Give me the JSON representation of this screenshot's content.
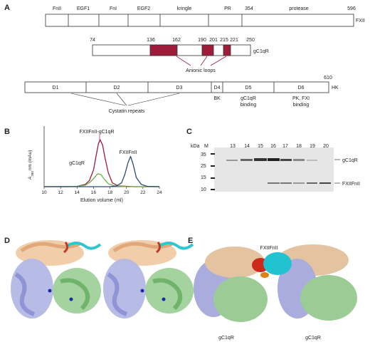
{
  "panels": {
    "a": "A",
    "b": "B",
    "c": "C",
    "d": "D",
    "e": "E"
  },
  "panel_a": {
    "fxii": {
      "name": "FXII",
      "end": "596",
      "mark_354": "354",
      "domains": [
        "FnII",
        "EGF1",
        "FnI",
        "EGF2",
        "kringle",
        "PR",
        "protease"
      ]
    },
    "gc1qr": {
      "name": "gC1qR",
      "positions": [
        "74",
        "136",
        "162",
        "190",
        "201",
        "215",
        "221",
        "250"
      ],
      "loops_label": "Anionic loops",
      "loop_color": "#9e1b3a"
    },
    "hk": {
      "name": "HK",
      "end": "610",
      "domains": [
        "D1",
        "D2",
        "D3",
        "D4",
        "D5",
        "D6"
      ],
      "sub_d4": "BK",
      "sub_d5_line1": "gC1qR",
      "sub_d5_line2": "binding",
      "sub_d6_line1": "PK, FXI",
      "sub_d6_line2": "binding",
      "cystatin_label": "Cystatin repeats"
    }
  },
  "chart_data": {
    "type": "line",
    "ylabel_a": "A",
    "ylabel_sub": "280",
    "ylabel_rest": "nm (mAu)",
    "xlabel": "Elution volume (ml)",
    "xlim": [
      10,
      24
    ],
    "ylim": [
      0,
      80
    ],
    "xticks": [
      "10",
      "12",
      "14",
      "16",
      "18",
      "20",
      "22",
      "24"
    ],
    "series": [
      {
        "name": "FXIIFnII-gC1qR",
        "color": "#9e1b3a",
        "x": [
          10,
          13,
          14,
          15,
          15.5,
          16,
          16.3,
          16.6,
          16.8,
          17.1,
          17.4,
          17.8,
          18.3,
          19,
          20,
          21,
          22,
          24
        ],
        "y": [
          0,
          0,
          0.5,
          3,
          8,
          22,
          40,
          57,
          62,
          55,
          38,
          18,
          5,
          1,
          0.5,
          0,
          0,
          0
        ]
      },
      {
        "name": "gC1qR",
        "color": "#6ab04c",
        "x": [
          10,
          14,
          15,
          15.6,
          16.1,
          16.5,
          16.9,
          17.3,
          17.8,
          18.5,
          20,
          24
        ],
        "y": [
          0,
          0.5,
          2,
          6,
          12,
          17,
          16,
          10,
          4,
          1,
          0,
          0
        ]
      },
      {
        "name": "FXIIFnII",
        "color": "#2c4a7a",
        "x": [
          10,
          18,
          18.8,
          19.4,
          19.8,
          20.2,
          20.5,
          20.8,
          21.2,
          21.8,
          22.5,
          24
        ],
        "y": [
          0,
          0,
          1,
          5,
          16,
          32,
          40,
          30,
          12,
          3,
          0.5,
          0
        ]
      }
    ]
  },
  "panel_c": {
    "kda": "kDa",
    "m": "M",
    "lanes": [
      "13",
      "14",
      "15",
      "16",
      "17",
      "18",
      "19",
      "20"
    ],
    "markers": [
      "35",
      "25",
      "15",
      "10"
    ],
    "band_top": "gC1qR",
    "band_bottom": "FXIIFnII"
  },
  "panel_d": {},
  "panel_e": {
    "fxii_label": "FXIIFnII",
    "fxii_label_color": "#1fb5c4",
    "gc1qr_left": "gC1qR",
    "gc1qr_right": "gC1qR"
  }
}
